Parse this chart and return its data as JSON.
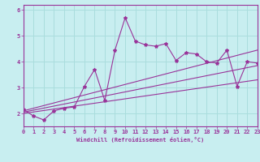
{
  "xlabel": "Windchill (Refroidissement éolien,°C)",
  "background_color": "#c8eef0",
  "line_color": "#993399",
  "grid_color": "#aadddd",
  "xlim": [
    0,
    23
  ],
  "ylim": [
    1.5,
    6.2
  ],
  "yticks": [
    2,
    3,
    4,
    5,
    6
  ],
  "xticks": [
    0,
    1,
    2,
    3,
    4,
    5,
    6,
    7,
    8,
    9,
    10,
    11,
    12,
    13,
    14,
    15,
    16,
    17,
    18,
    19,
    20,
    21,
    22,
    23
  ],
  "data_x": [
    0,
    1,
    2,
    3,
    4,
    5,
    6,
    7,
    8,
    9,
    10,
    11,
    12,
    13,
    14,
    15,
    16,
    17,
    18,
    19,
    20,
    21,
    22,
    23
  ],
  "data_y": [
    2.15,
    1.9,
    1.75,
    2.1,
    2.2,
    2.25,
    3.05,
    3.7,
    2.5,
    4.45,
    5.7,
    4.8,
    4.65,
    4.6,
    4.7,
    4.05,
    4.35,
    4.3,
    4.0,
    3.95,
    4.45,
    3.05,
    4.0,
    3.95
  ],
  "trend1_x": [
    0,
    23
  ],
  "trend1_y": [
    2.0,
    3.3
  ],
  "trend2_x": [
    0,
    23
  ],
  "trend2_y": [
    2.1,
    4.45
  ],
  "trend3_x": [
    0,
    23
  ],
  "trend3_y": [
    2.05,
    3.85
  ]
}
